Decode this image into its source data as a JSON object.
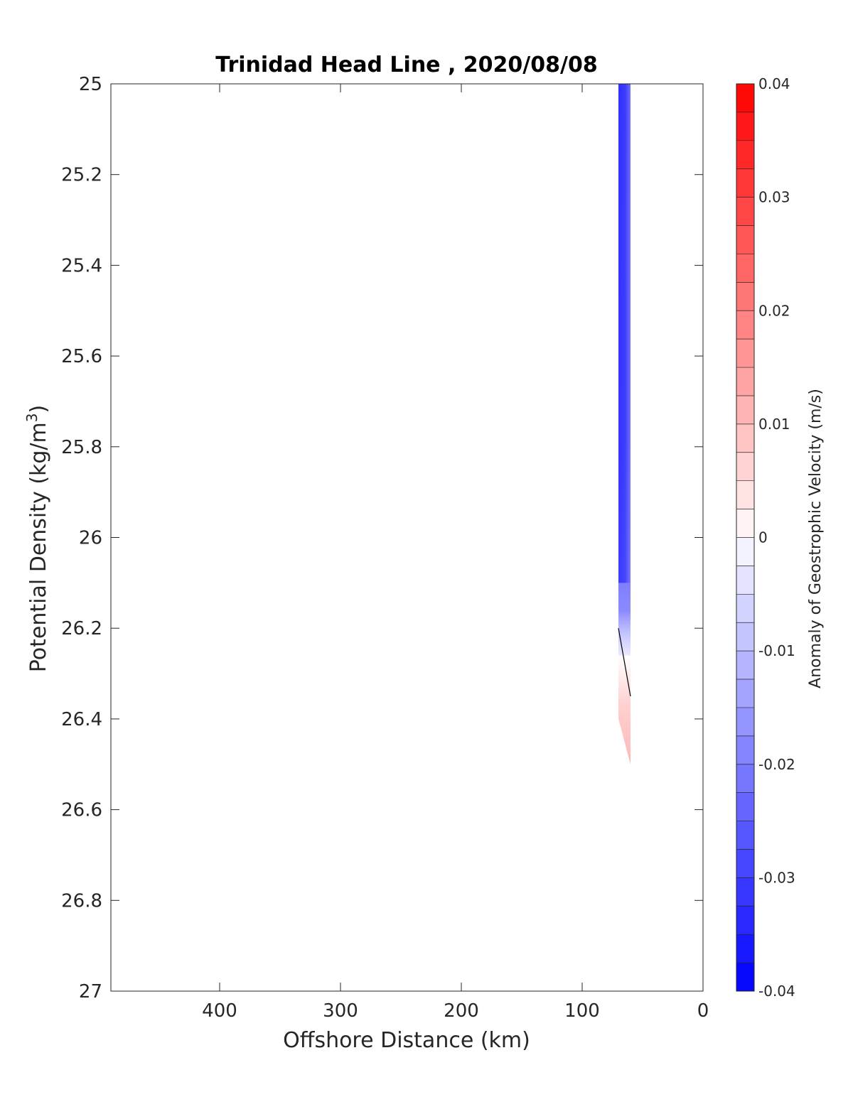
{
  "chart_data": {
    "type": "heatmap",
    "title": "Trinidad Head Line , 2020/08/08",
    "xlabel": "Offshore Distance (km)",
    "ylabel_main": "Potential Density (kg/m",
    "ylabel_sup": "3",
    "ylabel_end": ")",
    "colorbar_label": "Anomaly of Geostrophic Velocity (m/s)",
    "xlim": [
      490,
      0
    ],
    "x_reversed": true,
    "ylim": [
      25,
      27
    ],
    "y_reversed": true,
    "x_ticks": [
      "400",
      "300",
      "200",
      "100",
      "0"
    ],
    "x_tick_values": [
      400,
      300,
      200,
      100,
      0
    ],
    "y_ticks": [
      "25",
      "25.2",
      "25.4",
      "25.6",
      "25.8",
      "26",
      "26.2",
      "26.4",
      "26.6",
      "26.8",
      "27"
    ],
    "y_tick_values": [
      25,
      25.2,
      25.4,
      25.6,
      25.8,
      26,
      26.2,
      26.4,
      26.6,
      26.8,
      27
    ],
    "colorbar": {
      "range": [
        -0.04,
        0.04
      ],
      "levels": 32,
      "tick_labels": [
        "0.04",
        "0.03",
        "0.02",
        "0.01",
        "0",
        "-0.01",
        "-0.02",
        "-0.03",
        "-0.04"
      ],
      "tick_values": [
        0.04,
        0.03,
        0.02,
        0.01,
        0,
        -0.01,
        -0.02,
        -0.03,
        -0.04
      ],
      "neg_color": "#0000ff",
      "pos_color": "#ff0000",
      "mid_color": "#ffffff"
    },
    "field": {
      "x_range_km": [
        70,
        60
      ],
      "blue_band": {
        "density_top": 25.0,
        "density_fade_start": 26.1,
        "density_bottom": 26.32,
        "velocity": -0.03
      },
      "red_band": {
        "density_top": 26.26,
        "density_bottom": 26.5,
        "velocity": 0.006
      },
      "zero_contour": [
        [
          70,
          26.2
        ],
        [
          60,
          26.35
        ]
      ]
    }
  }
}
